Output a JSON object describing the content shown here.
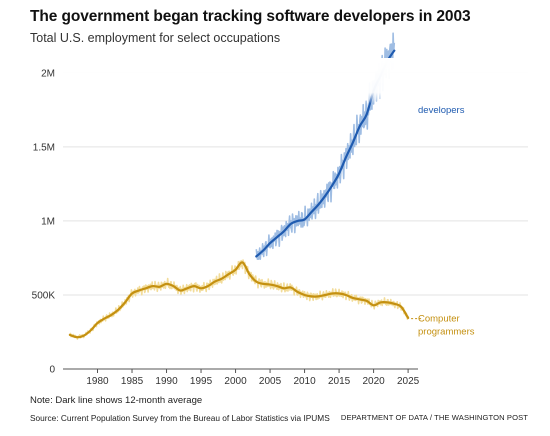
{
  "header": {
    "title": "The government began tracking software developers in 2003",
    "subtitle": "Total U.S. employment for select occupations"
  },
  "footer": {
    "note": "Note: Dark line shows 12-month average",
    "source": "Source: Current Population Survey from the Bureau of Labor Statistics via IPUMS",
    "credit": "DEPARTMENT OF DATA / THE WASHINGTON POST"
  },
  "colors": {
    "developers_line": "#1f5bb0",
    "developers_raw": "#9fbde3",
    "programmers_line": "#c49010",
    "programmers_raw": "#f2dc9a",
    "grid": "#e3e3e3",
    "axis": "#555555"
  },
  "chart_data": {
    "type": "line",
    "title": "The government began tracking software developers in 2003",
    "subtitle": "Total U.S. employment for select occupations",
    "xlabel": "",
    "ylabel": "",
    "xlim": [
      1975,
      2026
    ],
    "ylim": [
      0,
      2100000
    ],
    "grid": true,
    "x_ticks": [
      1980,
      1985,
      1990,
      1995,
      2000,
      2005,
      2010,
      2015,
      2020,
      2025
    ],
    "x_tick_labels": [
      "1980",
      "1985",
      "1990",
      "1995",
      "2000",
      "2005",
      "2010",
      "2015",
      "2020",
      "2025"
    ],
    "y_ticks": [
      0,
      500000,
      1000000,
      1500000,
      2000000
    ],
    "y_tick_labels": [
      "0",
      "500K",
      "1M",
      "1.5M",
      "2M"
    ],
    "series": [
      {
        "name": "Computer programmers",
        "label_lines": [
          "Computer",
          "programmers"
        ],
        "style": "12-month average with monthly values",
        "x": [
          1976,
          1977,
          1978,
          1979,
          1980,
          1981,
          1982,
          1983,
          1984,
          1985,
          1986,
          1987,
          1988,
          1989,
          1990,
          1991,
          1992,
          1993,
          1994,
          1995,
          1996,
          1997,
          1998,
          1999,
          2000,
          2001,
          2002,
          2003,
          2004,
          2005,
          2006,
          2007,
          2008,
          2009,
          2010,
          2011,
          2012,
          2013,
          2014,
          2015,
          2016,
          2017,
          2018,
          2019,
          2020,
          2021,
          2022,
          2023,
          2024,
          2025
        ],
        "values": [
          230000,
          215000,
          225000,
          260000,
          310000,
          340000,
          365000,
          400000,
          450000,
          510000,
          530000,
          545000,
          560000,
          555000,
          575000,
          560000,
          530000,
          545000,
          560000,
          545000,
          560000,
          590000,
          610000,
          640000,
          670000,
          720000,
          640000,
          590000,
          575000,
          570000,
          560000,
          545000,
          550000,
          520000,
          500000,
          490000,
          490000,
          500000,
          510000,
          510000,
          500000,
          480000,
          470000,
          460000,
          430000,
          450000,
          450000,
          440000,
          420000,
          345000
        ]
      },
      {
        "name": "Software developers",
        "label_lines": [
          "developers"
        ],
        "style": "12-month average with monthly values",
        "x": [
          2003,
          2004,
          2005,
          2006,
          2007,
          2008,
          2009,
          2010,
          2011,
          2012,
          2013,
          2014,
          2015,
          2016,
          2017,
          2018,
          2019,
          2020,
          2021,
          2022,
          2023
        ],
        "values": [
          760000,
          800000,
          850000,
          890000,
          930000,
          980000,
          1000000,
          1010000,
          1060000,
          1110000,
          1170000,
          1240000,
          1320000,
          1430000,
          1530000,
          1640000,
          1720000,
          1880000,
          1980000,
          2080000,
          2150000
        ]
      }
    ]
  }
}
